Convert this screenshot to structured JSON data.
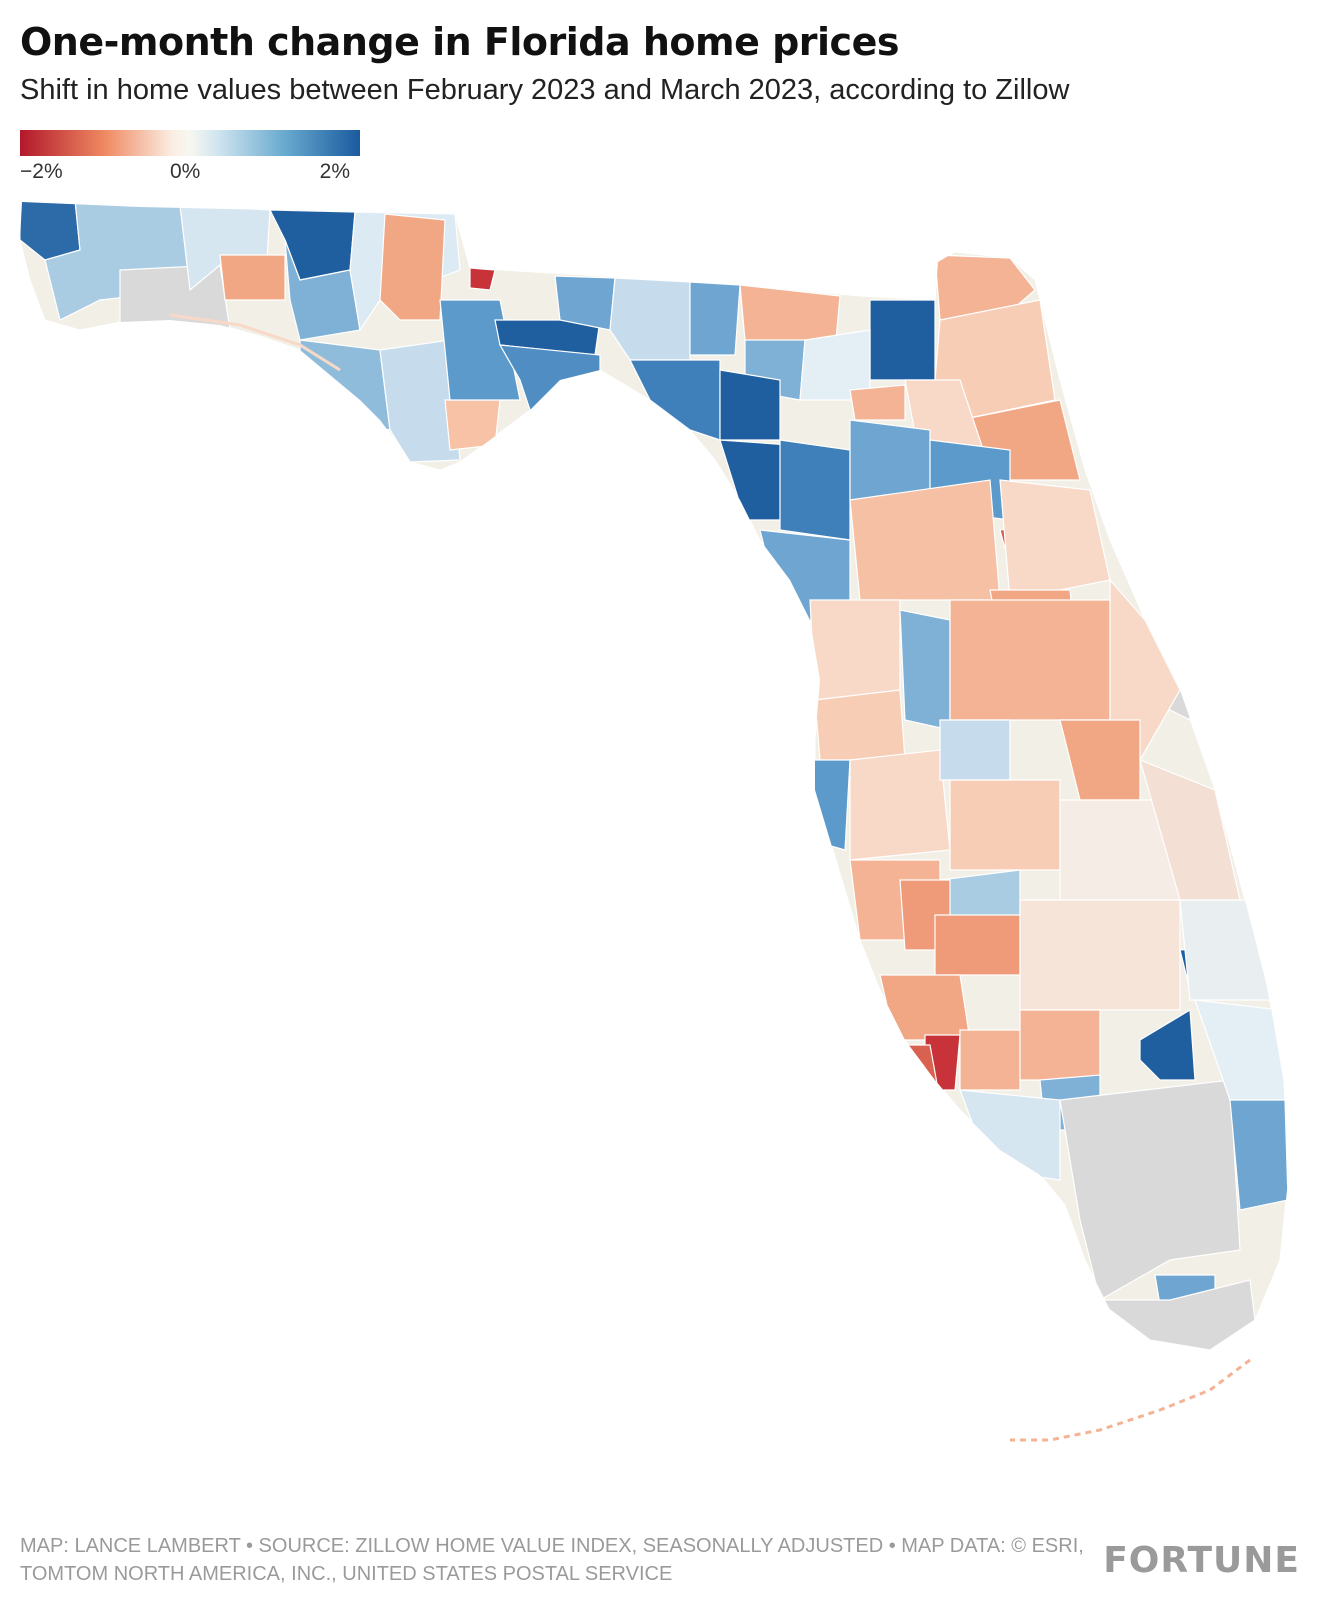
{
  "header": {
    "title": "One-month change in Florida home prices",
    "subtitle": "Shift in home values between February 2023 and March 2023, according to Zillow"
  },
  "legend": {
    "min_label": "−2%",
    "mid_label": "0%",
    "max_label": "2%",
    "colors": [
      "#b2182b",
      "#ef8a62",
      "#f7f7f0",
      "#67a9cf",
      "#1a5a9e"
    ],
    "no_data_color": "#d9d9d9"
  },
  "chart_data": {
    "type": "choropleth",
    "title": "One-month change in Florida home prices",
    "subtitle": "Shift in home values between February 2023 and March 2023, according to Zillow",
    "metric": "Percent change in home value",
    "scale_range": [
      -2,
      2
    ],
    "scale_unit": "%",
    "geography": "Florida ZIP codes"
  },
  "footer": {
    "credit": "MAP: LANCE LAMBERT • SOURCE: ZILLOW HOME VALUE INDEX, SEASONALLY ADJUSTED • MAP DATA: © ESRI, TOMTOM NORTH AMERICA, INC., UNITED STATES POSTAL SERVICE",
    "brand": "FORTUNE"
  }
}
